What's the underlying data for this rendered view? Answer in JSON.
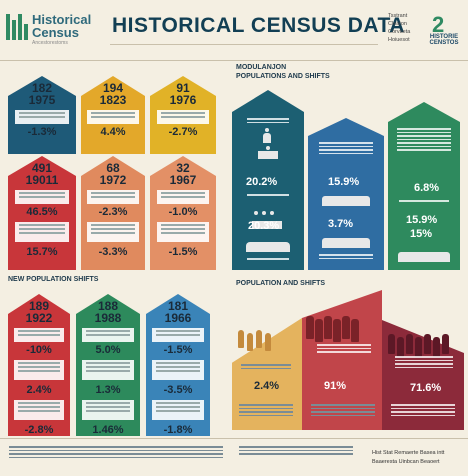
{
  "header": {
    "logo_line1": "Historical",
    "logo_line2": "Census",
    "logo_sub": "Ancestorestoms",
    "title": "HISTORICAL CENSUS DATA",
    "side_lines": [
      "Tsstrant",
      "Cleaton",
      "Corvaeta",
      "Hoiuesot"
    ],
    "badge_number": "2",
    "badge_text": "HISTORIE CENSTOS"
  },
  "sections": {
    "left_bottom": "NEW POPULATION SHIFTS",
    "right_top_1": "MODULANJON",
    "right_top_2": "POPULATIONS AND SHIFTS",
    "right_bottom": "POPULATION AND SHIFTS"
  },
  "cards": [
    {
      "year1": "182",
      "year2": "1975",
      "pct": "-1.3%",
      "color": "#1e5a78"
    },
    {
      "year1": "194",
      "year2": "1823",
      "pct": "4.4%",
      "color": "#e3a82a"
    },
    {
      "year1": "91",
      "year2": "1976",
      "pct": "-2.7%",
      "color": "#e1b227"
    },
    {
      "year1": "491",
      "year2": "19011",
      "pct": "46.5%",
      "pct2": "15.7%",
      "color": "#c8363a"
    },
    {
      "year1": "68",
      "year2": "1972",
      "pct": "-2.3%",
      "pct2": "-3.3%",
      "color": "#e08a5e"
    },
    {
      "year1": "32",
      "year2": "1967",
      "pct": "-1.0%",
      "pct2": "-1.5%",
      "color": "#e39066"
    },
    {
      "year1": "189",
      "year2": "1922",
      "pct": "-10%",
      "pct2": "2.4%",
      "pct3": "-2.8%",
      "color": "#c8363a"
    },
    {
      "year1": "188",
      "year2": "1988",
      "pct": "5.0%",
      "pct2": "1.3%",
      "pct3": "1.46%",
      "color": "#2d8a5c"
    },
    {
      "year1": "181",
      "year2": "1966",
      "pct": "-1.5%",
      "pct2": "-3.5%",
      "pct3": "-1.8%",
      "color": "#3a84b8"
    }
  ],
  "mod_stats": [
    "20.2%",
    "15.9%",
    "6.8%",
    "20.3%",
    "3.7%",
    "15.9%",
    "15%"
  ],
  "bottom_stats": [
    "2.4%",
    "91%",
    "71.6%"
  ],
  "footer_right": [
    "Hist Stat Remaerte Basea intt",
    "Baaeresta Uinbcan Beaoert"
  ]
}
